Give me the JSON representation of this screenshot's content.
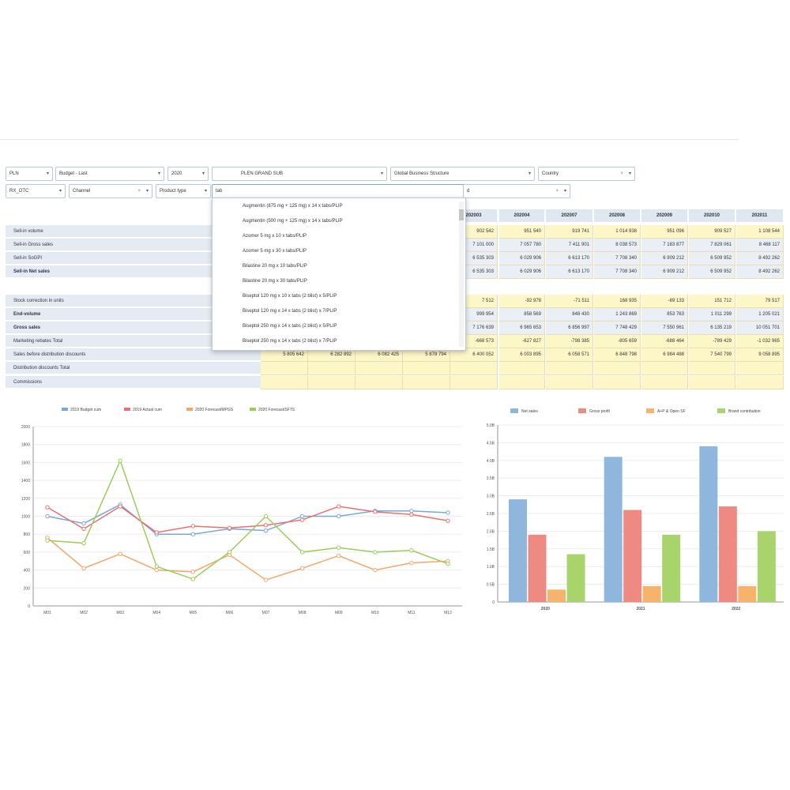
{
  "filters_row1": [
    {
      "label": "PLN"
    },
    {
      "label": "Budget - Last"
    },
    {
      "label": "2020"
    },
    {
      "label": "PLEN GRAND SUB"
    },
    {
      "label": "Global Business Structure"
    },
    {
      "label": "Country"
    }
  ],
  "filters_row2": [
    {
      "label": "RX_OTC"
    },
    {
      "label": "Channel"
    },
    {
      "label": "Product type"
    },
    {
      "label": "tab"
    },
    {
      "label": "d"
    }
  ],
  "dropdown_items": [
    "Augmentin (875 mg + 125 mg) x 14 x tabs/PLIP",
    "Augmentin (500 mg + 125 mg) x 14 x tabs/PLIP",
    "Azomer 5 mg x 10 x tabs/PLIP",
    "Azomer 5 mg x 30 x tabs/PLIP",
    "Bilastine 20 mg x 10 tabs/PLIP",
    "Bilastine 20 mg x 30 tabs/PLIP",
    "Biseptol 120 mg x 10 x tabs (2 blist) x 5/PLIP",
    "Biseptol 120 mg x 14 x tabs (2 blist) x 7/PLIP",
    "Biseptol 250 mg x 14 x tabs (2 blist) x 5/PLIP",
    "Biseptol 250 mg x 14 x tabs (2 blist) x 7/PLIP"
  ],
  "table": {
    "headers": [
      "202003",
      "202004",
      "202007",
      "202008",
      "202009",
      "202010",
      "202011"
    ],
    "group1_labels": [
      "Sell-in volume",
      "Sell-in Gross sales",
      "Sell-in SoGPI",
      "Sell-in Net sales"
    ],
    "group1_rows": [
      [
        "902 542",
        "951 540",
        "919 741",
        "1 014 938",
        "951 096",
        "909 527",
        "1 108 544"
      ],
      [
        "7 101 000",
        "7 057 780",
        "7 411 901",
        "8 038 573",
        "7 183 877",
        "7 829 061",
        "8 468 117"
      ],
      [
        "6 535 303",
        "6 029 906",
        "6 613 170",
        "7 708 340",
        "6 909 212",
        "6 509 952",
        "8 492 262"
      ],
      [
        "6 535 303",
        "6 029 906",
        "6 613 170",
        "7 708 340",
        "6 909 212",
        "6 509 952",
        "8 492 262"
      ]
    ],
    "group2_labels": [
      "Stock correction in units",
      "End-volume",
      "Gross sales",
      "Marketing rebates Total",
      "Sales before distribution discounts",
      "Distribution discounts Total",
      "Commissions"
    ],
    "group2_row_bold": [
      false,
      true,
      true,
      false,
      false,
      false,
      false
    ],
    "group2_rows": [
      [
        "7 512",
        "-92 978",
        "-71 511",
        "168 935",
        "-69 133",
        "151 712",
        "79 517"
      ],
      [
        "999 954",
        "858 569",
        "848 430",
        "1 243 869",
        "853 763",
        "1 011 299",
        "1 205 021"
      ],
      [
        "7 176 639",
        "6 965 653",
        "6 856 997",
        "7 748 429",
        "7 550 961",
        "6 135 219",
        "10 051 701"
      ],
      [
        "-668 573",
        "-627 827",
        "-798 385",
        "-805 659",
        "-688 464",
        "-789 429",
        "-1 032 965"
      ],
      [
        "6 400 052",
        "6 003 895",
        "6 058 571",
        "6 848 798",
        "6 984 488",
        "7 540 799",
        "9 058 895"
      ],
      [
        "",
        "",
        "",
        "",
        "",
        "",
        ""
      ],
      [
        "",
        "",
        "",
        "",
        "",
        "",
        ""
      ]
    ],
    "group2_left_values": [
      "5 805 642",
      "6 282 892",
      "6 082 425",
      "5 878 794"
    ]
  },
  "chart_data": [
    {
      "type": "line",
      "legend_position": "top",
      "series": [
        {
          "name": "2019 Budget cum",
          "color": "#7aa6d8",
          "values": [
            1000,
            920,
            1130,
            800,
            800,
            860,
            840,
            1000,
            1000,
            1060,
            1060,
            1040
          ]
        },
        {
          "name": "2019 Actual cum",
          "color": "#e87070",
          "values": [
            1100,
            860,
            1110,
            820,
            890,
            870,
            900,
            960,
            1110,
            1050,
            1020,
            950
          ]
        },
        {
          "name": "2020 Forecast/MPGS",
          "color": "#f2a86a",
          "values": [
            760,
            420,
            580,
            400,
            380,
            570,
            290,
            420,
            560,
            400,
            480,
            500
          ]
        },
        {
          "name": "2020 Forecast/SFTS",
          "color": "#9ccc5a",
          "values": [
            730,
            700,
            1620,
            440,
            300,
            600,
            1000,
            600,
            650,
            600,
            620,
            470
          ]
        }
      ],
      "categories": [
        "M01",
        "M02",
        "M03",
        "M04",
        "M05",
        "M06",
        "M07",
        "M08",
        "M09",
        "M10",
        "M11",
        "M12"
      ],
      "ylim": [
        0,
        2000
      ],
      "y_ticks": [
        "0",
        "200",
        "400",
        "600",
        "800",
        "1000",
        "1200",
        "1400",
        "1600",
        "1800",
        "2000"
      ]
    },
    {
      "type": "bar",
      "legend_position": "top",
      "categories": [
        "2020",
        "2021",
        "2022"
      ],
      "series": [
        {
          "name": "Net sales",
          "color": "#8fb6dc",
          "values": [
            2.9,
            4.1,
            4.4
          ]
        },
        {
          "name": "Gross profit",
          "color": "#ee8a82",
          "values": [
            1.9,
            2.6,
            2.7
          ]
        },
        {
          "name": "A+P & Open SF",
          "color": "#f6b36c",
          "values": [
            0.35,
            0.45,
            0.45
          ]
        },
        {
          "name": "Brand contribution",
          "color": "#a9d46c",
          "values": [
            1.35,
            1.9,
            2.0
          ]
        }
      ],
      "ylim": [
        0,
        5
      ],
      "y_ticks": [
        "0",
        "0.5B",
        "1.0B",
        "1.5B",
        "2.0B",
        "2.5B",
        "3.0B",
        "3.5B",
        "4.0B",
        "4.5B",
        "5.0B"
      ]
    }
  ]
}
